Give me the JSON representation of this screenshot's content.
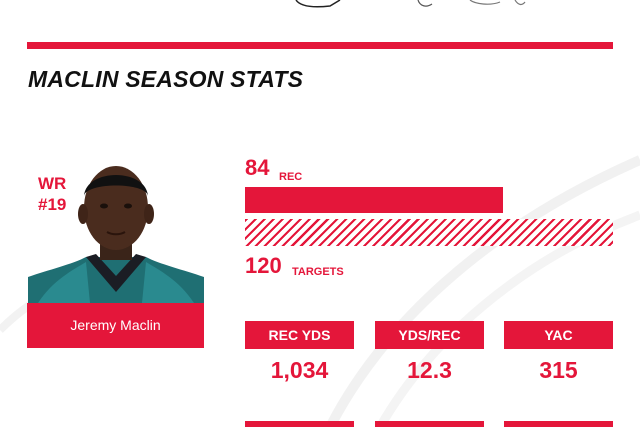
{
  "title": "MACLIN SEASON STATS",
  "player": {
    "position": "WR",
    "number": "#19",
    "name": "Jeremy Maclin"
  },
  "receptions": {
    "value": "84",
    "label": "REC",
    "numeric": 84
  },
  "targets": {
    "value": "120",
    "label": "TARGETS",
    "numeric": 120
  },
  "stats": [
    {
      "label": "REC YDS",
      "value": "1,034"
    },
    {
      "label": "YDS/REC",
      "value": "12.3"
    },
    {
      "label": "YAC",
      "value": "315"
    }
  ],
  "colors": {
    "accent": "#e4163a",
    "title": "#111111",
    "background": "#ffffff"
  }
}
